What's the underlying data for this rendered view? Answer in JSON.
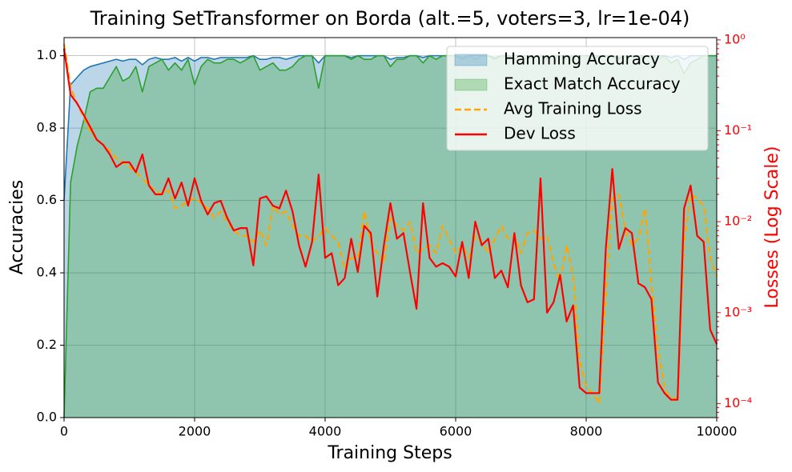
{
  "chart_data": {
    "type": "line",
    "title": "Training SetTransformer on Borda (alt.=5, voters=3, lr=1e-04)",
    "x_label": "Training Steps",
    "y_label": "Accuracies",
    "y2_label": "Losses (Log Scale)",
    "y2_color": "#ff0000",
    "x": [
      0,
      100,
      200,
      300,
      400,
      500,
      600,
      700,
      800,
      900,
      1000,
      1100,
      1200,
      1300,
      1400,
      1500,
      1600,
      1700,
      1800,
      1900,
      2000,
      2100,
      2200,
      2300,
      2400,
      2500,
      2600,
      2700,
      2800,
      2900,
      3000,
      3100,
      3200,
      3300,
      3400,
      3500,
      3600,
      3700,
      3800,
      3900,
      4000,
      4100,
      4200,
      4300,
      4400,
      4500,
      4600,
      4700,
      4800,
      4900,
      5000,
      5100,
      5200,
      5300,
      5400,
      5500,
      5600,
      5700,
      5800,
      5900,
      6000,
      6100,
      6200,
      6300,
      6400,
      6500,
      6600,
      6700,
      6800,
      6900,
      7000,
      7100,
      7200,
      7300,
      7400,
      7500,
      7600,
      7700,
      7800,
      7900,
      8000,
      8100,
      8200,
      8300,
      8400,
      8500,
      8600,
      8700,
      8800,
      8900,
      9000,
      9100,
      9200,
      9300,
      9400,
      9500,
      9600,
      9700,
      9800,
      9900,
      10000
    ],
    "xlim": [
      0,
      10000
    ],
    "xticks": [
      0,
      2000,
      4000,
      6000,
      8000,
      10000
    ],
    "ylim": [
      0,
      1.05
    ],
    "yticks": [
      {
        "value": 0,
        "label": "0.0"
      },
      {
        "value": 0.2,
        "label": "0.2"
      },
      {
        "value": 0.4,
        "label": "0.4"
      },
      {
        "value": 0.6,
        "label": "0.6"
      },
      {
        "value": 0.8,
        "label": "0.8"
      },
      {
        "value": 1,
        "label": "1.0"
      }
    ],
    "y2lim": [
      7e-05,
      1.06
    ],
    "y2log": true,
    "y2ticks": [
      {
        "value": 0.0001,
        "label": "10⁻⁴"
      },
      {
        "value": 0.001,
        "label": "10⁻³"
      },
      {
        "value": 0.01,
        "label": "10⁻²"
      },
      {
        "value": 0.1,
        "label": "10⁻¹"
      },
      {
        "value": 1,
        "label": "10⁰"
      }
    ],
    "grid": true,
    "legend": "upper right",
    "series": [
      {
        "name": "Hamming Accuracy",
        "color": "#1f77b4",
        "fill": true,
        "values": [
          0.6,
          0.92,
          0.94,
          0.96,
          0.97,
          0.975,
          0.98,
          0.985,
          0.99,
          0.985,
          0.99,
          0.99,
          0.975,
          0.99,
          0.995,
          0.99,
          0.99,
          0.995,
          0.985,
          0.995,
          0.985,
          0.995,
          0.995,
          0.99,
          0.995,
          0.995,
          0.995,
          0.995,
          0.995,
          1.0,
          0.99,
          0.99,
          0.995,
          0.995,
          0.99,
          0.995,
          1.0,
          1.0,
          1.0,
          0.98,
          1.0,
          1.0,
          1.0,
          1.0,
          0.995,
          1.0,
          1.0,
          1.0,
          1.0,
          1.0,
          0.99,
          0.995,
          0.995,
          1.0,
          1.0,
          0.995,
          1.0,
          1.0,
          1.0,
          1.0,
          1.0,
          0.995,
          1.0,
          1.0,
          1.0,
          1.0,
          0.995,
          1.0,
          1.0,
          1.0,
          1.0,
          1.0,
          1.0,
          1.0,
          0.995,
          1.0,
          1.0,
          1.0,
          1.0,
          1.0,
          1.0,
          1.0,
          1.0,
          1.0,
          1.0,
          0.995,
          1.0,
          1.0,
          1.0,
          1.0,
          1.0,
          1.0,
          1.0,
          0.995,
          1.0,
          0.99,
          1.0,
          1.0,
          1.0,
          1.0,
          1.0
        ]
      },
      {
        "name": "Exact Match Accuracy",
        "color": "#2ca02c",
        "fill": true,
        "values": [
          0,
          0.65,
          0.75,
          0.82,
          0.9,
          0.91,
          0.91,
          0.94,
          0.97,
          0.93,
          0.94,
          0.97,
          0.9,
          0.97,
          0.98,
          0.99,
          0.96,
          0.98,
          0.96,
          0.99,
          0.92,
          0.97,
          0.99,
          0.98,
          0.98,
          0.99,
          0.99,
          0.98,
          0.99,
          1.0,
          0.96,
          0.97,
          0.98,
          0.96,
          0.96,
          0.97,
          0.99,
          1.0,
          1.0,
          0.91,
          1.0,
          1.0,
          1.0,
          1.0,
          0.99,
          1.0,
          0.99,
          0.99,
          1.0,
          1.0,
          0.97,
          0.99,
          0.99,
          1.0,
          1.0,
          0.98,
          1.0,
          0.99,
          1.0,
          1.0,
          1.0,
          0.99,
          1.0,
          0.99,
          1.0,
          1.0,
          0.99,
          1.0,
          1.0,
          0.99,
          1.0,
          0.99,
          1.0,
          1.0,
          0.99,
          1.0,
          1.0,
          0.99,
          1.0,
          1.0,
          1.0,
          0.99,
          1.0,
          1.0,
          1.0,
          0.99,
          1.0,
          1.0,
          0.99,
          1.0,
          1.0,
          0.99,
          1.0,
          0.98,
          0.99,
          0.95,
          0.98,
          0.99,
          1.0,
          1.0,
          1.0
        ]
      },
      {
        "name": "Avg Training Loss",
        "color": "#ffa500",
        "axis": "y2",
        "dashed": true,
        "values": [
          0.9,
          0.3,
          0.2,
          0.14,
          0.1,
          0.08,
          0.07,
          0.06,
          0.05,
          0.045,
          0.04,
          0.035,
          0.03,
          0.025,
          0.022,
          0.02,
          0.022,
          0.014,
          0.015,
          0.017,
          0.018,
          0.016,
          0.014,
          0.011,
          0.013,
          0.01,
          0.008,
          0.007,
          0.007,
          0.006,
          0.008,
          0.0055,
          0.015,
          0.012,
          0.013,
          0.009,
          0.007,
          0.007,
          0.006,
          0.007,
          0.0085,
          0.007,
          0.006,
          0.003,
          0.004,
          0.004,
          0.013,
          0.006,
          0.0045,
          0.0035,
          0.011,
          0.009,
          0.008,
          0.01,
          0.0045,
          0.005,
          0.0055,
          0.0045,
          0.009,
          0.0065,
          0.0045,
          0.0055,
          0.004,
          0.007,
          0.006,
          0.0045,
          0.0065,
          0.009,
          0.0065,
          0.007,
          0.0045,
          0.0075,
          0.008,
          0.0065,
          0.007,
          0.0035,
          0.0022,
          0.0055,
          0.0025,
          0.0003,
          0.00015,
          0.00013,
          0.0001,
          0.0015,
          0.018,
          0.02,
          0.008,
          0.0055,
          0.0065,
          0.014,
          0.002,
          0.0004,
          0.00015,
          0.00011,
          0.00012,
          0.006,
          0.02,
          0.018,
          0.015,
          0.004,
          0.0025
        ]
      },
      {
        "name": "Dev Loss",
        "color": "#ff0000",
        "axis": "y2",
        "values": [
          0.8,
          0.25,
          0.2,
          0.15,
          0.11,
          0.08,
          0.07,
          0.055,
          0.04,
          0.045,
          0.045,
          0.035,
          0.055,
          0.025,
          0.02,
          0.02,
          0.03,
          0.018,
          0.027,
          0.015,
          0.03,
          0.017,
          0.012,
          0.016,
          0.017,
          0.011,
          0.008,
          0.0085,
          0.0085,
          0.0033,
          0.018,
          0.019,
          0.015,
          0.014,
          0.022,
          0.013,
          0.0055,
          0.0032,
          0.006,
          0.033,
          0.004,
          0.0045,
          0.002,
          0.0024,
          0.0065,
          0.0028,
          0.009,
          0.0075,
          0.0015,
          0.0055,
          0.016,
          0.0065,
          0.0075,
          0.0028,
          0.0011,
          0.016,
          0.004,
          0.0032,
          0.0035,
          0.0032,
          0.0025,
          0.006,
          0.0024,
          0.01,
          0.0055,
          0.0065,
          0.0024,
          0.0029,
          0.0019,
          0.0075,
          0.002,
          0.0013,
          0.0014,
          0.03,
          0.001,
          0.0013,
          0.0026,
          0.0008,
          0.0012,
          0.00015,
          0.00013,
          0.00013,
          0.00013,
          0.005,
          0.038,
          0.005,
          0.0085,
          0.0075,
          0.0021,
          0.0019,
          0.0014,
          0.00017,
          0.00013,
          0.00011,
          0.00011,
          0.014,
          0.025,
          0.007,
          0.006,
          0.00065,
          0.00045
        ]
      }
    ]
  }
}
